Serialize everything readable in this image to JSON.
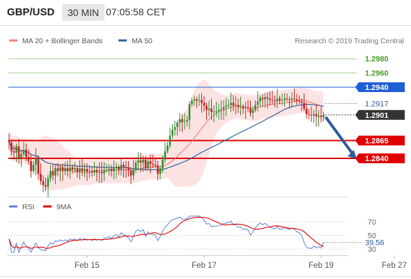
{
  "header": {
    "pair": "GBP/USD",
    "timeframe": "30 MIN",
    "time": "07:05:58 CET"
  },
  "credit": "Research © 2019 Trading Central",
  "colors": {
    "ma20": "#f08080",
    "ma50": "#2e5f9e",
    "bands_fill": "#fbdada",
    "resistance_green": "#a8d08d",
    "resistance_blue": "#1f5fd6",
    "support_red": "#e00000",
    "bull_candle": "#2e8b2e",
    "bear_candle": "#c02020",
    "rsi": "#5b7fd6",
    "rsi_ma": "#e00000",
    "arrow": "#2a5c9e"
  },
  "chart_data": [
    {
      "type": "candlestick",
      "title": "",
      "ylim": [
        1.2788,
        1.299
      ],
      "legend": [
        {
          "name": "MA 20 + Bollinger Bands",
          "color": "#f08080"
        },
        {
          "name": "MA 50",
          "color": "#2e5f9e"
        }
      ],
      "x_labels": [
        {
          "label": "Feb 15",
          "index": 32
        },
        {
          "label": "Feb 17",
          "index": 80
        },
        {
          "label": "Feb 19",
          "index": 128
        },
        {
          "label": "Feb 27",
          "index": 158
        }
      ],
      "closes_start": 1.2862,
      "closes": [
        1.2862,
        1.285,
        1.2848,
        1.2857,
        1.284,
        1.2846,
        1.2852,
        1.2842,
        1.2836,
        1.2822,
        1.2831,
        1.284,
        1.2818,
        1.2808,
        1.2802,
        1.28,
        1.2812,
        1.2822,
        1.2816,
        1.2826,
        1.2822,
        1.2827,
        1.2822,
        1.2826,
        1.2822,
        1.2827,
        1.2824,
        1.2826,
        1.2821,
        1.2826,
        1.2822,
        1.2825,
        1.2821,
        1.2822,
        1.282,
        1.2823,
        1.282,
        1.2821,
        1.2819,
        1.2823,
        1.2823,
        1.2825,
        1.2822,
        1.2826,
        1.2828,
        1.2824,
        1.2831,
        1.2828,
        1.2826,
        1.2823,
        1.2816,
        1.2824,
        1.2834,
        1.2837,
        1.2834,
        1.2838,
        1.2826,
        1.2836,
        1.2832,
        1.2831,
        1.283,
        1.2818,
        1.2826,
        1.2838,
        1.285,
        1.2858,
        1.2872,
        1.288,
        1.2884,
        1.289,
        1.2895,
        1.2891,
        1.2892,
        1.2894,
        1.2916,
        1.2921,
        1.2923,
        1.2921,
        1.2922,
        1.2918,
        1.2914,
        1.2908,
        1.291,
        1.2905,
        1.2906,
        1.2906,
        1.2908,
        1.2909,
        1.2912,
        1.2914,
        1.2915,
        1.2918,
        1.2914,
        1.2915,
        1.2912,
        1.2913,
        1.291,
        1.2911,
        1.291,
        1.2904,
        1.2908,
        1.2915,
        1.292,
        1.2925,
        1.2923,
        1.2926,
        1.2924,
        1.2922,
        1.2921,
        1.292,
        1.2924,
        1.2921,
        1.2922,
        1.2924,
        1.2923,
        1.2922,
        1.2924,
        1.2923,
        1.2921,
        1.292,
        1.2918,
        1.291,
        1.2902,
        1.2901,
        1.29,
        1.2902,
        1.2899,
        1.29,
        1.2898,
        1.2901
      ],
      "levels": [
        {
          "value": 1.298,
          "label": "1.2980",
          "kind": "resistance",
          "color": "#a8d08d"
        },
        {
          "value": 1.296,
          "label": "1.2960",
          "kind": "resistance",
          "color": "#a8d08d"
        },
        {
          "value": 1.294,
          "label": "1.2940",
          "kind": "pivot",
          "color": "#1f5fd6"
        },
        {
          "value": 1.2917,
          "label": "1.2917",
          "kind": "reference",
          "color": "#888888"
        },
        {
          "value": 1.2901,
          "label": "1.2901",
          "kind": "last",
          "color": "#333333"
        },
        {
          "value": 1.2865,
          "label": "1.2865",
          "kind": "support",
          "color": "#e00000"
        },
        {
          "value": 1.284,
          "label": "1.2840",
          "kind": "target",
          "color": "#e00000"
        }
      ],
      "forecast_arrow": {
        "from": 1.2901,
        "to": 1.284
      }
    },
    {
      "type": "line",
      "title": "",
      "ylim": [
        23,
        82
      ],
      "legend": [
        {
          "name": "RSI",
          "color": "#5b7fd6"
        },
        {
          "name": "9MA",
          "color": "#e00000"
        }
      ],
      "y_ticks": [
        70,
        50,
        30
      ],
      "last_value": 39.56,
      "last_label": "39.56"
    }
  ]
}
